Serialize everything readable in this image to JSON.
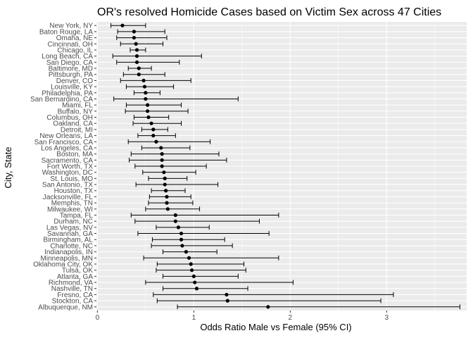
{
  "chart_data": {
    "type": "errorbar",
    "title": "OR's resolved Homicide Cases based on Victim Sex across 47 Cities",
    "xlabel": "Odds Ratio Male vs Female (95% CI)",
    "ylabel": "City, State",
    "xlim": [
      -0.01,
      3.83
    ],
    "x_ticks": [
      0,
      1,
      2,
      3
    ],
    "grid": true,
    "colors": {
      "panel": "#ebebeb",
      "grid_major": "#ffffff",
      "point": "#000000",
      "errorbar": "#000000"
    },
    "cities": [
      {
        "name": "New York, NY",
        "or": 0.26,
        "lo": 0.14,
        "hi": 0.5
      },
      {
        "name": "Baton Rouge, LA",
        "or": 0.38,
        "lo": 0.21,
        "hi": 0.7
      },
      {
        "name": "Omaha, NE",
        "or": 0.38,
        "lo": 0.2,
        "hi": 0.72
      },
      {
        "name": "Cincinnati, OH",
        "or": 0.4,
        "lo": 0.24,
        "hi": 0.68
      },
      {
        "name": "Chicago, IL",
        "or": 0.41,
        "lo": 0.34,
        "hi": 0.5
      },
      {
        "name": "Long Beach, CA",
        "or": 0.41,
        "lo": 0.16,
        "hi": 1.08
      },
      {
        "name": "San Diego, CA",
        "or": 0.41,
        "lo": 0.2,
        "hi": 0.85
      },
      {
        "name": "Baltimore, MD",
        "or": 0.43,
        "lo": 0.32,
        "hi": 0.56
      },
      {
        "name": "Pittsburgh, PA",
        "or": 0.43,
        "lo": 0.27,
        "hi": 0.7
      },
      {
        "name": "Denver, CO",
        "or": 0.48,
        "lo": 0.24,
        "hi": 0.97
      },
      {
        "name": "Louisville, KY",
        "or": 0.49,
        "lo": 0.3,
        "hi": 0.79
      },
      {
        "name": "Philadelphia, PA",
        "or": 0.5,
        "lo": 0.38,
        "hi": 0.65
      },
      {
        "name": "San Bernardino, CA",
        "or": 0.5,
        "lo": 0.17,
        "hi": 1.46
      },
      {
        "name": "Miami, FL",
        "or": 0.52,
        "lo": 0.3,
        "hi": 0.87
      },
      {
        "name": "Buffalo, NY",
        "or": 0.52,
        "lo": 0.29,
        "hi": 0.94
      },
      {
        "name": "Columbus, OH",
        "or": 0.53,
        "lo": 0.38,
        "hi": 0.74
      },
      {
        "name": "Oakland, CA",
        "or": 0.56,
        "lo": 0.37,
        "hi": 0.87
      },
      {
        "name": "Detroit, MI",
        "or": 0.58,
        "lo": 0.46,
        "hi": 0.73
      },
      {
        "name": "New Orleans, LA",
        "or": 0.58,
        "lo": 0.42,
        "hi": 0.81
      },
      {
        "name": "San Francisco, CA",
        "or": 0.61,
        "lo": 0.32,
        "hi": 1.17
      },
      {
        "name": "Los Angeles, CA",
        "or": 0.66,
        "lo": 0.46,
        "hi": 0.96
      },
      {
        "name": "Boston, MA",
        "or": 0.67,
        "lo": 0.35,
        "hi": 1.26
      },
      {
        "name": "Sacramento, CA",
        "or": 0.67,
        "lo": 0.33,
        "hi": 1.34
      },
      {
        "name": "Fort Worth, TX",
        "or": 0.67,
        "lo": 0.39,
        "hi": 1.13
      },
      {
        "name": "Washington, DC",
        "or": 0.69,
        "lo": 0.47,
        "hi": 1.02
      },
      {
        "name": "St. Louis, MO",
        "or": 0.7,
        "lo": 0.53,
        "hi": 0.93
      },
      {
        "name": "San Antonio, TX",
        "or": 0.7,
        "lo": 0.4,
        "hi": 1.25
      },
      {
        "name": "Houston, TX",
        "or": 0.71,
        "lo": 0.56,
        "hi": 0.91
      },
      {
        "name": "Jacksonville, FL",
        "or": 0.72,
        "lo": 0.54,
        "hi": 0.97
      },
      {
        "name": "Memphis, TN",
        "or": 0.72,
        "lo": 0.53,
        "hi": 0.99
      },
      {
        "name": "Milwaukee, WI",
        "or": 0.73,
        "lo": 0.5,
        "hi": 1.06
      },
      {
        "name": "Tampa, FL",
        "or": 0.81,
        "lo": 0.35,
        "hi": 1.88
      },
      {
        "name": "Durham, NC",
        "or": 0.81,
        "lo": 0.39,
        "hi": 1.68
      },
      {
        "name": "Las Vegas, NV",
        "or": 0.84,
        "lo": 0.61,
        "hi": 1.16
      },
      {
        "name": "Savannah, GA",
        "or": 0.87,
        "lo": 0.42,
        "hi": 1.78
      },
      {
        "name": "Birmingham, AL",
        "or": 0.87,
        "lo": 0.57,
        "hi": 1.32
      },
      {
        "name": "Charlotte, NC",
        "or": 0.88,
        "lo": 0.56,
        "hi": 1.4
      },
      {
        "name": "Indianapolis, IN",
        "or": 0.92,
        "lo": 0.68,
        "hi": 1.24
      },
      {
        "name": "Minneapolis, MN",
        "or": 0.95,
        "lo": 0.48,
        "hi": 1.88
      },
      {
        "name": "Oklahoma City, OK",
        "or": 0.97,
        "lo": 0.62,
        "hi": 1.52
      },
      {
        "name": "Tulsa, OK",
        "or": 0.98,
        "lo": 0.61,
        "hi": 1.54
      },
      {
        "name": "Atlanta, GA",
        "or": 1.0,
        "lo": 0.68,
        "hi": 1.46
      },
      {
        "name": "Richmond, VA",
        "or": 1.01,
        "lo": 0.5,
        "hi": 2.03
      },
      {
        "name": "Nashville, TN",
        "or": 1.03,
        "lo": 0.68,
        "hi": 1.56
      },
      {
        "name": "Fresno, CA",
        "or": 1.34,
        "lo": 0.58,
        "hi": 3.07
      },
      {
        "name": "Stockton, CA",
        "or": 1.35,
        "lo": 0.62,
        "hi": 2.94
      },
      {
        "name": "Albuquerque, NM",
        "or": 1.77,
        "lo": 0.83,
        "hi": 3.76
      }
    ]
  }
}
